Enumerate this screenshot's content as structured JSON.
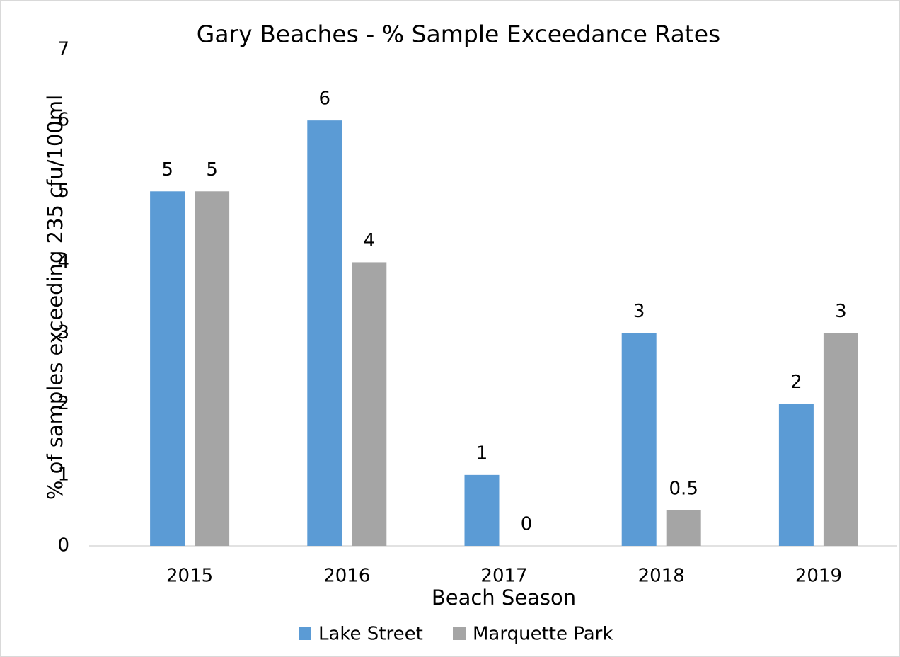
{
  "chart_data": {
    "type": "bar",
    "title": "Gary Beaches - % Sample Exceedance Rates",
    "x_label": "Beach Season",
    "y_label": "% of samples exceeding 235 cfu/100ml",
    "categories": [
      "2015",
      "2016",
      "2017",
      "2018",
      "2019"
    ],
    "series": [
      {
        "name": "Lake Street",
        "color": "#5b9bd5",
        "values": [
          5,
          6,
          1,
          3,
          2
        ]
      },
      {
        "name": "Marquette Park",
        "color": "#a5a5a5",
        "values": [
          5,
          4,
          0,
          0.5,
          3
        ]
      }
    ],
    "ylim": [
      0,
      7
    ],
    "yticks": [
      0,
      1,
      2,
      3,
      4,
      5,
      6,
      7
    ],
    "grid": false,
    "legend": "bottom"
  }
}
